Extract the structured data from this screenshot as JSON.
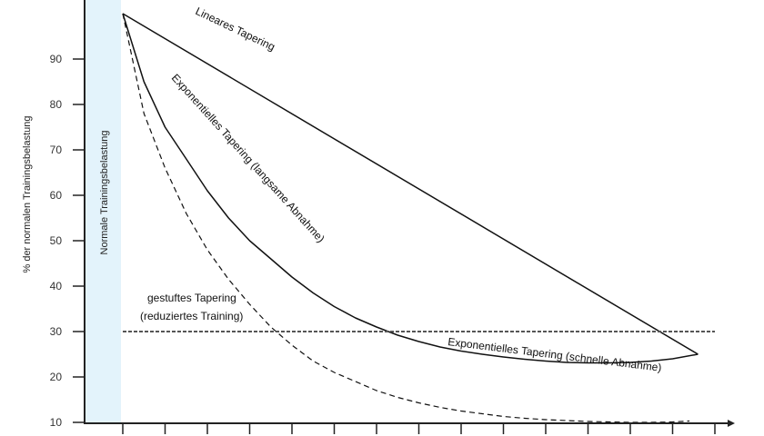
{
  "chart_data": {
    "type": "line",
    "title": "",
    "xlabel": "",
    "ylabel": "% der normalen Trainingsbelastung",
    "ylim": [
      0,
      100
    ],
    "y_ticks": [
      10,
      20,
      30,
      40,
      50,
      60,
      70,
      80,
      90
    ],
    "x_tick_count": 15,
    "grid": false,
    "band_label": "Normale Trainingsbelastung",
    "band_color": "#e3f3fb",
    "series": [
      {
        "name": "Lineares Tapering",
        "style": "solid",
        "x": [
          0,
          13.6
        ],
        "y": [
          100,
          25
        ]
      },
      {
        "name": "Exponentielles Tapering (langsame Abnahme)",
        "style": "solid",
        "x": [
          0,
          0.5,
          1,
          1.5,
          2,
          2.5,
          3,
          3.5,
          4,
          4.5,
          5,
          5.5,
          6,
          6.5,
          7,
          7.5,
          8,
          8.5,
          9,
          9.5,
          10,
          10.5,
          11,
          11.5,
          12,
          12.5,
          13,
          13.6
        ],
        "y": [
          100,
          85,
          75,
          68,
          61,
          55,
          50,
          46,
          42,
          38.5,
          35.5,
          33,
          31,
          29.2,
          27.8,
          26.6,
          25.7,
          25,
          24.4,
          23.9,
          23.5,
          23.2,
          23.1,
          23.1,
          23.2,
          23.5,
          24,
          25
        ]
      },
      {
        "name": "Exponentielles Tapering (schnelle Abnahme)",
        "style": "dashed",
        "x": [
          0,
          0.5,
          1,
          1.5,
          2,
          2.5,
          3,
          3.5,
          4,
          4.5,
          5,
          5.5,
          6,
          6.5,
          7,
          7.5,
          8,
          8.5,
          9,
          9.5,
          10,
          10.5,
          11,
          11.5,
          12,
          12.5,
          13,
          13.4
        ],
        "y": [
          100,
          78,
          66,
          56,
          48,
          41.5,
          36,
          31,
          27,
          23.5,
          21,
          19,
          17,
          15.5,
          14.3,
          13.3,
          12.5,
          11.9,
          11.3,
          10.9,
          10.6,
          10.4,
          10.2,
          10.1,
          10,
          10,
          10.1,
          10.3
        ]
      },
      {
        "name": "gestuftes Tapering (reduziertes Training)",
        "style": "dotted",
        "x": [
          0,
          14
        ],
        "y": [
          30,
          30
        ]
      }
    ],
    "labels": {
      "linear": "Lineares Tapering",
      "exp_slow": "Exponentielles Tapering (langsame Abnahme)",
      "exp_fast": "Exponentielles Tapering (schnelle Abnahme)",
      "step_line1": "gestuftes Tapering",
      "step_line2": "(reduziertes Training)"
    }
  }
}
